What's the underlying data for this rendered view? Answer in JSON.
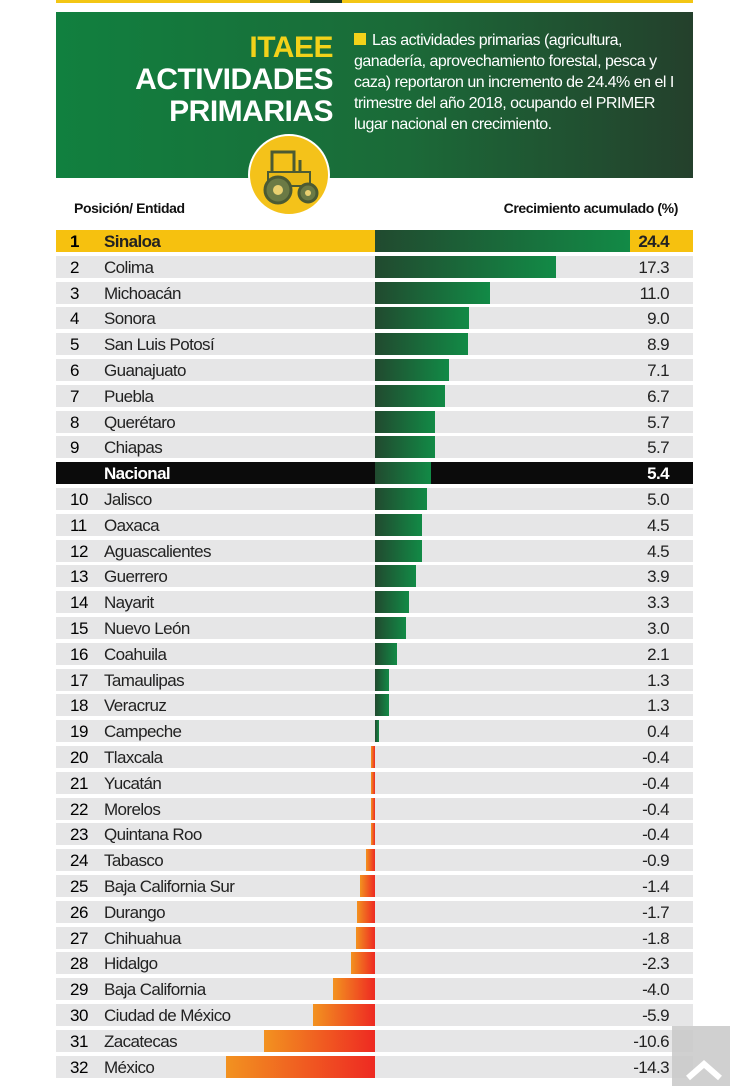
{
  "header": {
    "title_line1": "ITAEE",
    "title_line2": "ACTIVIDADES",
    "title_line3": "PRIMARIAS",
    "description": "Las actividades primarias (agricultura, ganadería, aprovechamiento forestal, pesca y caza) reportaron un incremento de 24.4% en el I trimestre del año 2018, ocupando el PRIMER lugar nacional en crecimiento.",
    "icon": "tractor-icon"
  },
  "colors": {
    "positive": "#128a46",
    "negative": "#ee2a22",
    "highlight": "#f6c10f",
    "national": "#0b0b0b"
  },
  "chart_data": {
    "type": "bar",
    "orientation": "horizontal",
    "xlabel": "Posición/ Entidad",
    "ylabel": "Crecimiento acumulado (%)",
    "xlim": [
      -14.3,
      24.4
    ],
    "rows": [
      {
        "pos": "1",
        "name": "Sinaloa",
        "value": 24.4,
        "label": "24.4"
      },
      {
        "pos": "2",
        "name": "Colima",
        "value": 17.3,
        "label": "17.3"
      },
      {
        "pos": "3",
        "name": "Michoacán",
        "value": 11.0,
        "label": "11.0"
      },
      {
        "pos": "4",
        "name": "Sonora",
        "value": 9.0,
        "label": "9.0"
      },
      {
        "pos": "5",
        "name": "San Luis Potosí",
        "value": 8.9,
        "label": "8.9"
      },
      {
        "pos": "6",
        "name": "Guanajuato",
        "value": 7.1,
        "label": "7.1"
      },
      {
        "pos": "7",
        "name": "Puebla",
        "value": 6.7,
        "label": "6.7"
      },
      {
        "pos": "8",
        "name": "Querétaro",
        "value": 5.7,
        "label": "5.7"
      },
      {
        "pos": "9",
        "name": "Chiapas",
        "value": 5.7,
        "label": "5.7"
      },
      {
        "pos": "",
        "name": "Nacional",
        "value": 5.4,
        "label": "5.4",
        "national": true
      },
      {
        "pos": "10",
        "name": "Jalisco",
        "value": 5.0,
        "label": "5.0"
      },
      {
        "pos": "11",
        "name": "Oaxaca",
        "value": 4.5,
        "label": "4.5"
      },
      {
        "pos": "12",
        "name": "Aguascalientes",
        "value": 4.5,
        "label": "4.5"
      },
      {
        "pos": "13",
        "name": "Guerrero",
        "value": 3.9,
        "label": "3.9"
      },
      {
        "pos": "14",
        "name": "Nayarit",
        "value": 3.3,
        "label": "3.3"
      },
      {
        "pos": "15",
        "name": "Nuevo León",
        "value": 3.0,
        "label": "3.0"
      },
      {
        "pos": "16",
        "name": "Coahuila",
        "value": 2.1,
        "label": "2.1"
      },
      {
        "pos": "17",
        "name": "Tamaulipas",
        "value": 1.3,
        "label": "1.3"
      },
      {
        "pos": "18",
        "name": "Veracruz",
        "value": 1.3,
        "label": "1.3"
      },
      {
        "pos": "19",
        "name": "Campeche",
        "value": 0.4,
        "label": "0.4"
      },
      {
        "pos": "20",
        "name": "Tlaxcala",
        "value": -0.4,
        "label": "-0.4"
      },
      {
        "pos": "21",
        "name": "Yucatán",
        "value": -0.4,
        "label": "-0.4"
      },
      {
        "pos": "22",
        "name": "Morelos",
        "value": -0.4,
        "label": "-0.4"
      },
      {
        "pos": "23",
        "name": "Quintana Roo",
        "value": -0.4,
        "label": "-0.4"
      },
      {
        "pos": "24",
        "name": "Tabasco",
        "value": -0.9,
        "label": "-0.9"
      },
      {
        "pos": "25",
        "name": "Baja California Sur",
        "value": -1.4,
        "label": "-1.4"
      },
      {
        "pos": "26",
        "name": "Durango",
        "value": -1.7,
        "label": "-1.7"
      },
      {
        "pos": "27",
        "name": "Chihuahua",
        "value": -1.8,
        "label": "-1.8"
      },
      {
        "pos": "28",
        "name": "Hidalgo",
        "value": -2.3,
        "label": "-2.3"
      },
      {
        "pos": "29",
        "name": "Baja California",
        "value": -4.0,
        "label": "-4.0"
      },
      {
        "pos": "30",
        "name": "Ciudad de México",
        "value": -5.9,
        "label": "-5.9"
      },
      {
        "pos": "31",
        "name": "Zacatecas",
        "value": -10.6,
        "label": "-10.6"
      },
      {
        "pos": "32",
        "name": "México",
        "value": -14.3,
        "label": "-14.3"
      }
    ]
  }
}
